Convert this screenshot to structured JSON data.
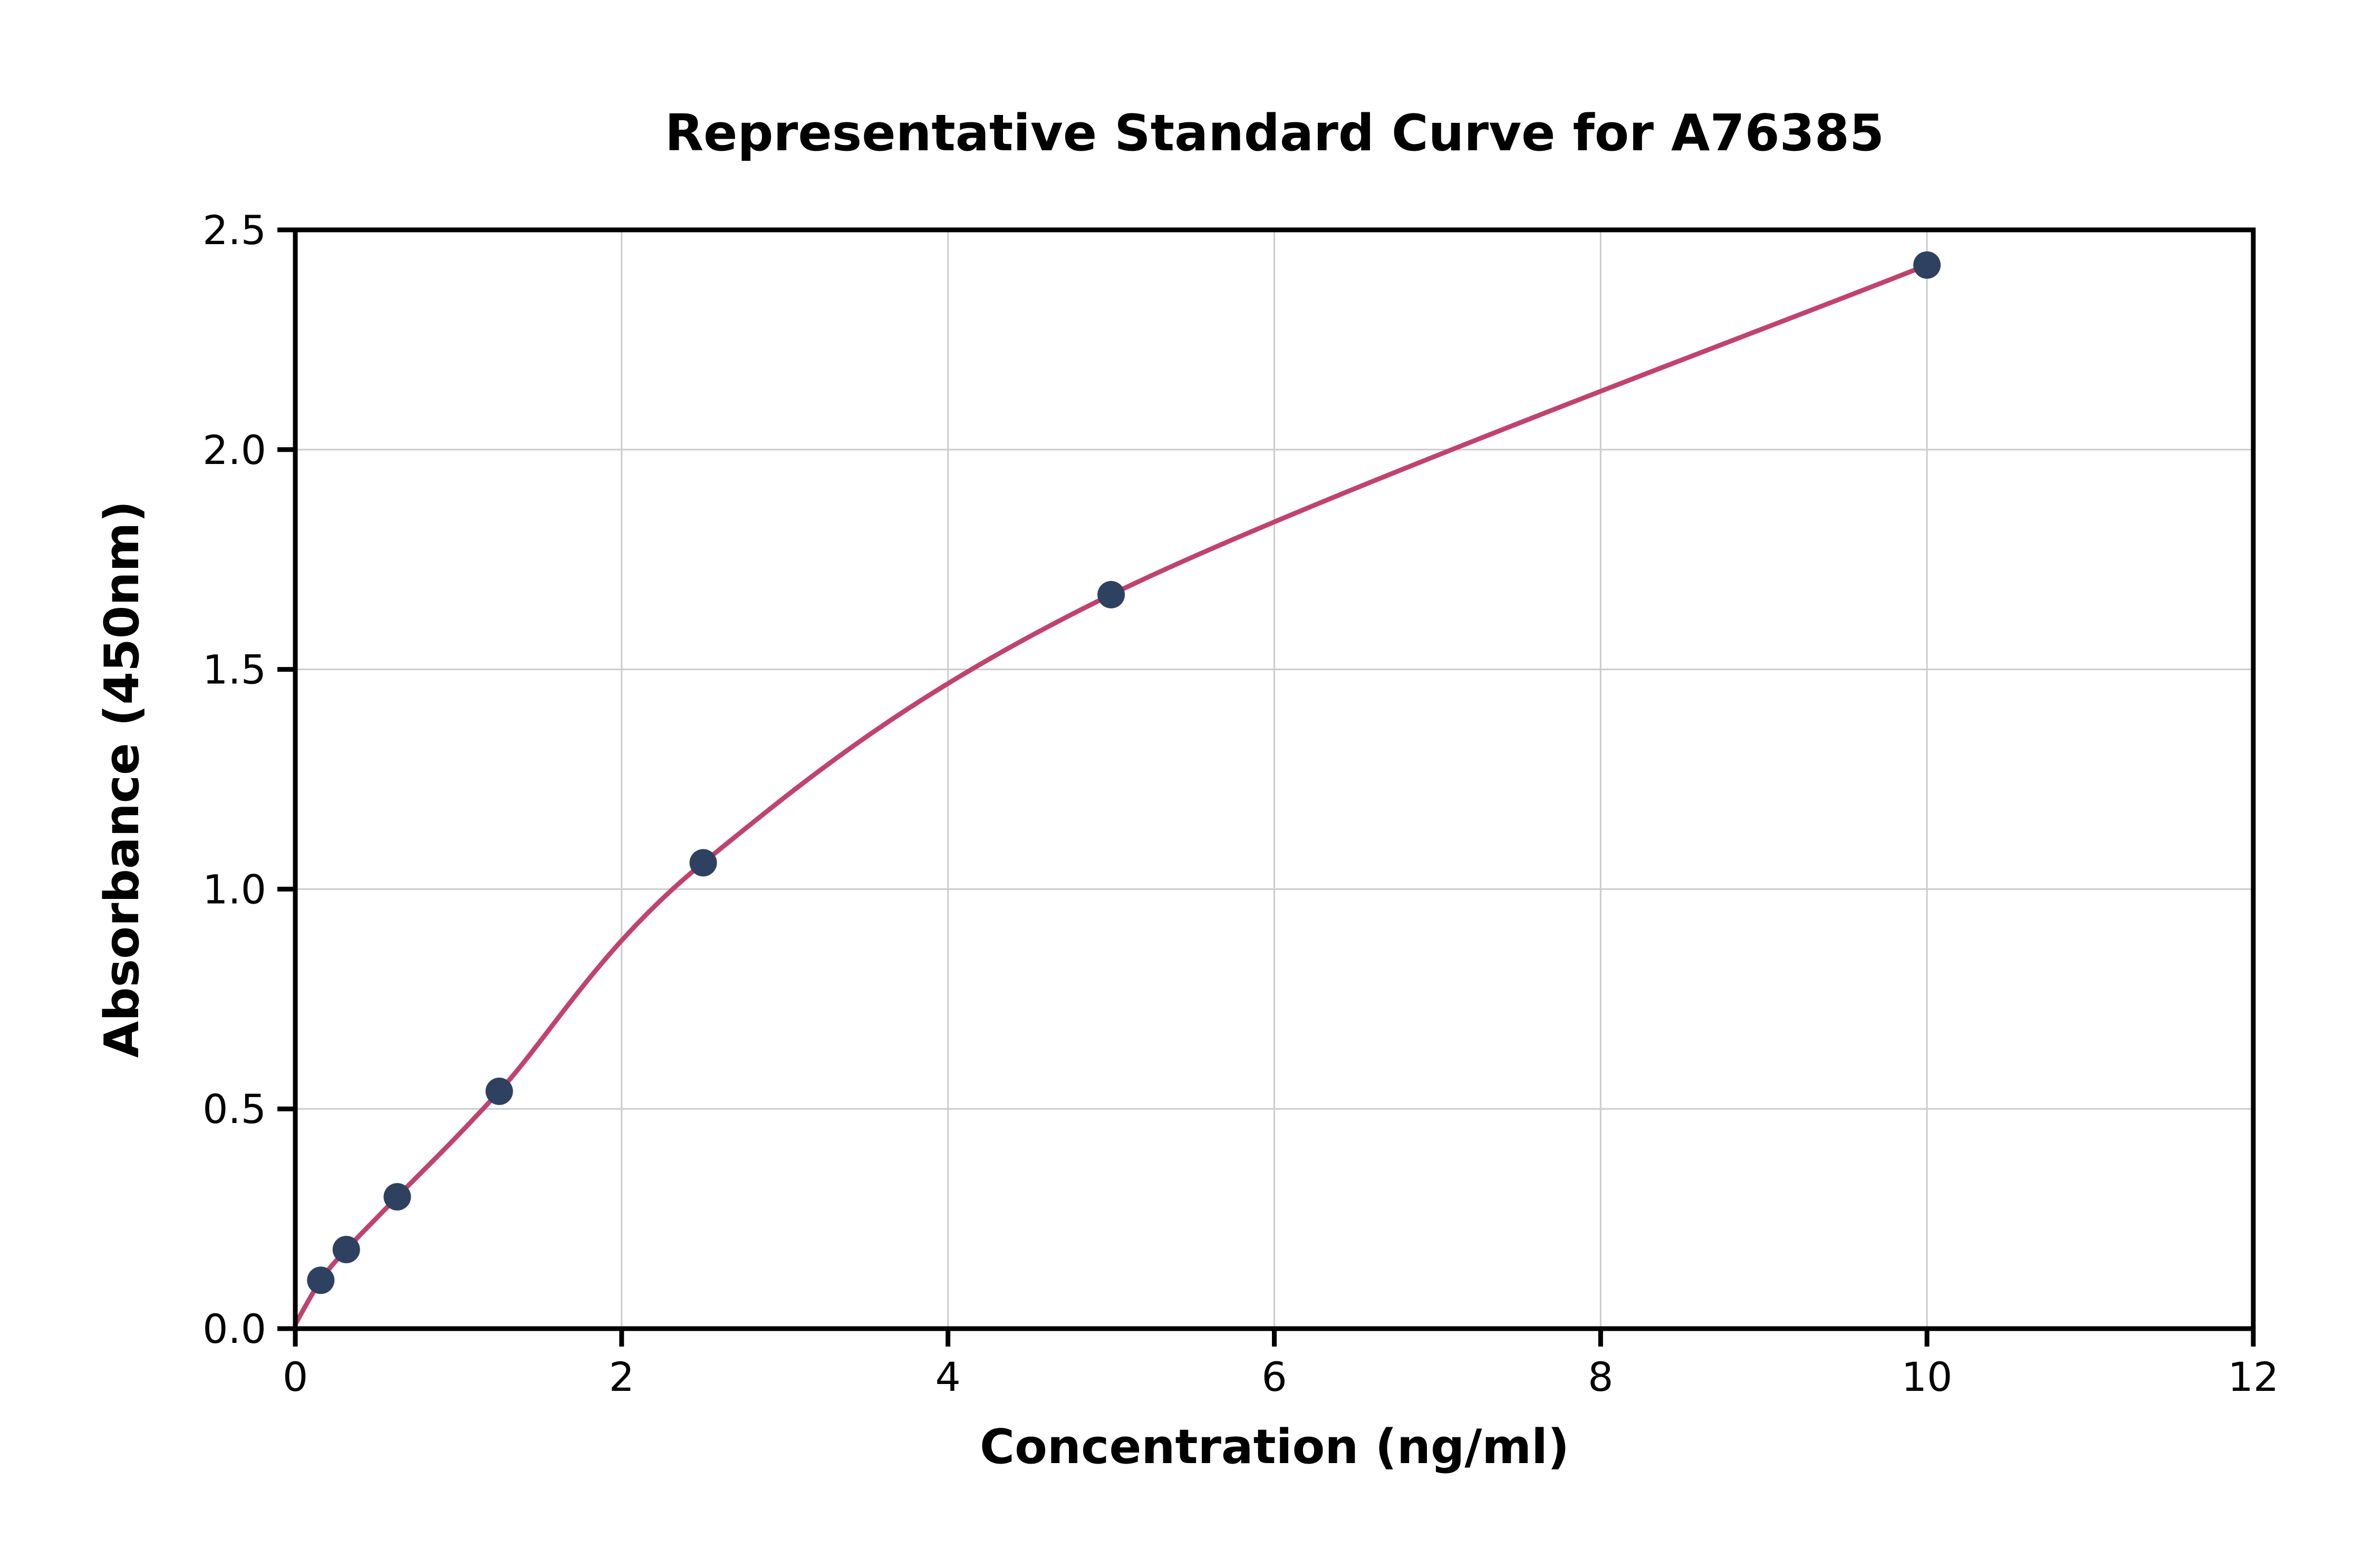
{
  "figure": {
    "background_color": "#ffffff"
  },
  "chart_data": {
    "type": "scatter",
    "title": "Representative Standard Curve for A76385",
    "xlabel": "Concentration (ng/ml)",
    "ylabel": "Absorbance (450nm)",
    "xlim": [
      0,
      12
    ],
    "ylim": [
      0,
      2.5
    ],
    "xtick_values": [
      0,
      2,
      4,
      6,
      8,
      10,
      12
    ],
    "xtick_labels": [
      "0",
      "2",
      "4",
      "6",
      "8",
      "10",
      "12"
    ],
    "ytick_values": [
      0,
      0.5,
      1.0,
      1.5,
      2.0,
      2.5
    ],
    "ytick_labels": [
      "0.0",
      "0.5",
      "1.0",
      "1.5",
      "2.0",
      "2.5"
    ],
    "grid": true,
    "legend": "none",
    "points": [
      {
        "x": 0.156,
        "y": 0.11
      },
      {
        "x": 0.3125,
        "y": 0.18
      },
      {
        "x": 0.625,
        "y": 0.3
      },
      {
        "x": 1.25,
        "y": 0.54
      },
      {
        "x": 2.5,
        "y": 1.06
      },
      {
        "x": 5.0,
        "y": 1.67
      },
      {
        "x": 10.0,
        "y": 2.42
      }
    ],
    "fit_curve": {
      "description": "saturating fitted standard curve from origin through data points",
      "anchor_start": {
        "x": 0,
        "y": 0.01
      },
      "color": "#c0436e",
      "width": 9
    },
    "marker_color": "#2f4160",
    "marker_radius": 26,
    "grid_color": "#cccccc",
    "axis_color": "#000000",
    "background_color": "#ffffff"
  }
}
